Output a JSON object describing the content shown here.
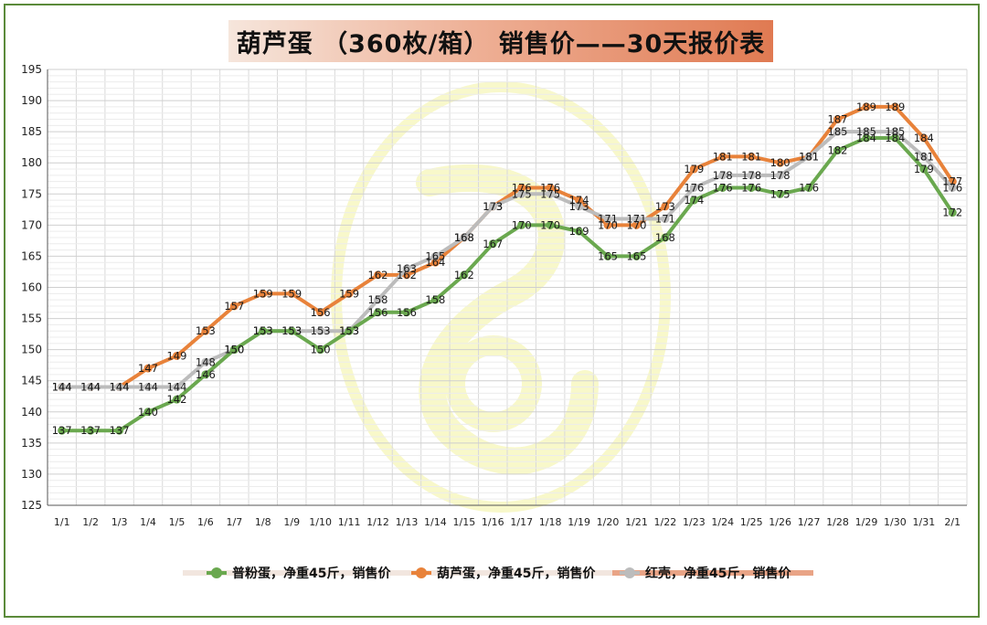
{
  "chart_data": {
    "type": "line",
    "title": "葫芦蛋 （360枚/箱） 销售价——30天报价表",
    "categories": [
      "1/1",
      "1/2",
      "1/3",
      "1/4",
      "1/5",
      "1/6",
      "1/7",
      "1/8",
      "1/9",
      "1/10",
      "1/11",
      "1/12",
      "1/13",
      "1/14",
      "1/15",
      "1/16",
      "1/17",
      "1/18",
      "1/19",
      "1/20",
      "1/21",
      "1/22",
      "1/23",
      "1/24",
      "1/25",
      "1/26",
      "1/27",
      "1/28",
      "1/29",
      "1/30",
      "1/31",
      "2/1"
    ],
    "y_ticks": [
      "125",
      "130",
      "135",
      "140",
      "145",
      "150",
      "155",
      "160",
      "165",
      "170",
      "175",
      "180",
      "185",
      "190",
      "195"
    ],
    "ylim": [
      125,
      195
    ],
    "grid": true,
    "legend_position": "bottom",
    "series": [
      {
        "name": "普粉蛋，净重45斤，销售价",
        "color": "#6aa84f",
        "values": [
          137,
          137,
          137,
          140,
          142,
          146,
          150,
          153,
          153,
          150,
          153,
          156,
          156,
          158,
          162,
          167,
          170,
          170,
          169,
          165,
          165,
          168,
          174,
          176,
          176,
          175,
          176,
          182,
          184,
          184,
          179,
          172
        ]
      },
      {
        "name": "葫芦蛋，净重45斤，销售价",
        "color": "#e8823a",
        "values": [
          144,
          144,
          144,
          147,
          149,
          153,
          157,
          159,
          159,
          156,
          159,
          162,
          162,
          164,
          168,
          173,
          176,
          176,
          174,
          170,
          170,
          173,
          179,
          181,
          181,
          180,
          181,
          187,
          189,
          189,
          184,
          177
        ]
      },
      {
        "name": "红壳，净重45斤，销售价",
        "color": "#bcbcbc",
        "values": [
          144,
          144,
          144,
          144,
          144,
          148,
          150,
          153,
          153,
          153,
          153,
          158,
          163,
          165,
          168,
          173,
          175,
          175,
          173,
          171,
          171,
          171,
          176,
          178,
          178,
          178,
          181,
          185,
          185,
          185,
          181,
          176
        ]
      }
    ]
  }
}
